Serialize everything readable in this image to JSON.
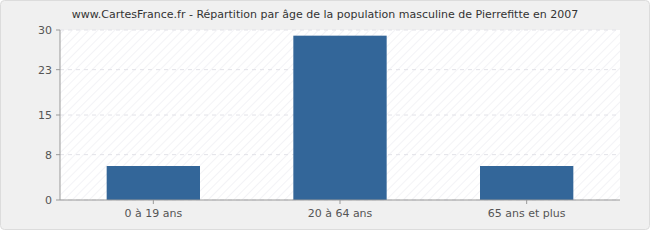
{
  "chart_data": {
    "type": "bar",
    "title": "www.CartesFrance.fr - Répartition par âge de la population masculine de Pierrefitte en 2007",
    "categories": [
      "0 à 19 ans",
      "20 à 64 ans",
      "65 ans et plus"
    ],
    "values": [
      6,
      29,
      6
    ],
    "color": "#336699",
    "ylim": [
      0,
      30
    ],
    "yticks": [
      0,
      8,
      15,
      23,
      30
    ],
    "grid": true
  }
}
